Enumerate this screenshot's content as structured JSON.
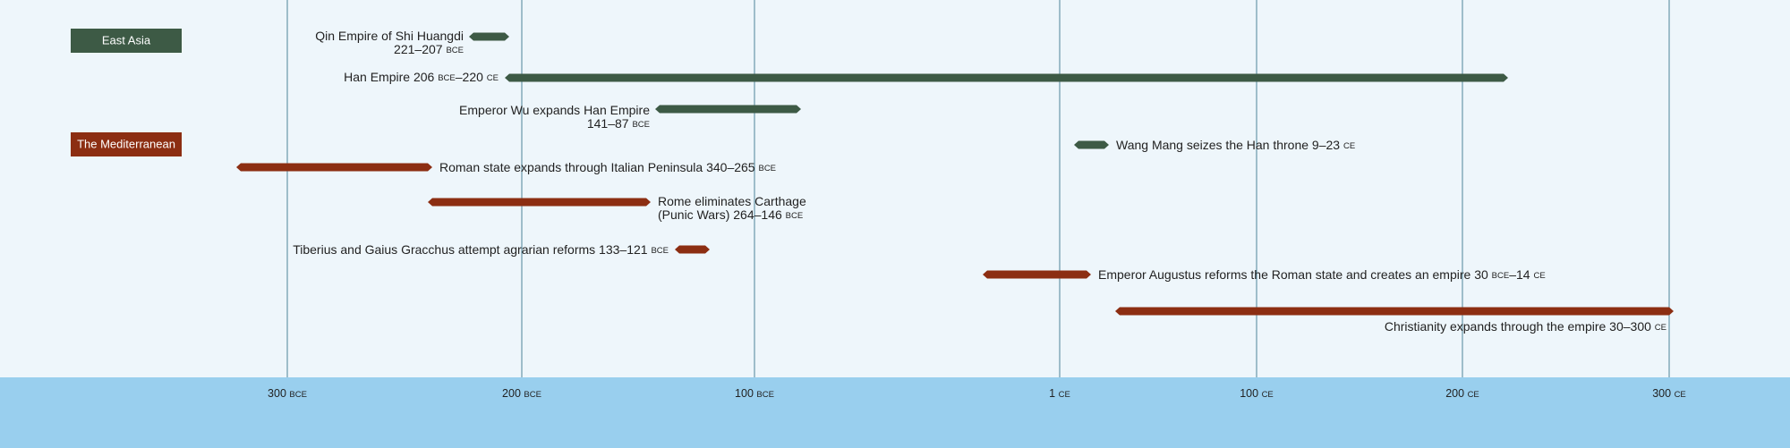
{
  "groups": [
    {
      "label": "East Asia",
      "events": [
        {
          "lines": [
            [
              "Qin Empire of Shi Huangdi"
            ],
            [
              "221–207 ",
              "BCE"
            ]
          ]
        },
        {
          "lines": [
            [
              "Han Empire 206 ",
              "BCE",
              "–220 ",
              "CE"
            ]
          ]
        },
        {
          "lines": [
            [
              "Emperor Wu expands Han Empire"
            ],
            [
              "141–87 ",
              "BCE"
            ]
          ]
        },
        {
          "lines": [
            [
              "Wang Mang seizes the Han throne 9–23 ",
              "CE"
            ]
          ]
        }
      ]
    },
    {
      "label": "The Mediterranean",
      "events": [
        {
          "lines": [
            [
              "Roman state expands through Italian Peninsula 340–265 ",
              "BCE"
            ]
          ]
        },
        {
          "lines": [
            [
              "Rome eliminates Carthage"
            ],
            [
              "(Punic Wars) 264–146 ",
              "BCE"
            ]
          ]
        },
        {
          "lines": [
            [
              "Tiberius and Gaius Gracchus attempt agrarian reforms 133–121 ",
              "BCE"
            ]
          ]
        },
        {
          "lines": [
            [
              "Emperor Augustus reforms the Roman state and creates an empire 30 ",
              "BCE",
              "–14 ",
              "CE"
            ]
          ]
        },
        {
          "lines": [
            [
              "Christianity expands through the empire 30–300 ",
              "CE"
            ]
          ]
        }
      ]
    }
  ],
  "axis": {
    "ticks": [
      [
        "300 ",
        "BCE"
      ],
      [
        "200 ",
        "BCE"
      ],
      [
        "100 ",
        "BCE"
      ],
      [
        "1 ",
        "CE"
      ],
      [
        "100 ",
        "CE"
      ],
      [
        "200 ",
        "CE"
      ],
      [
        "300 ",
        "CE"
      ]
    ]
  }
}
